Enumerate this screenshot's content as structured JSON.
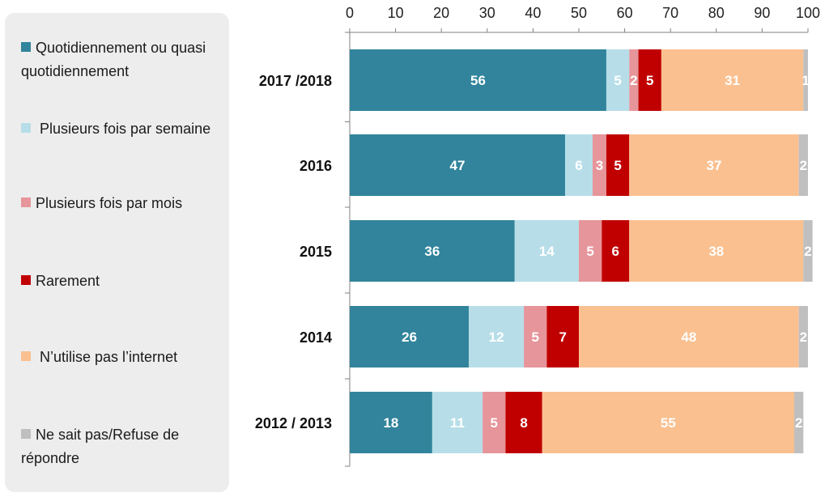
{
  "chart_data": {
    "type": "bar",
    "orientation": "horizontal",
    "stacked": true,
    "categories": [
      "2017 /2018",
      "2016",
      "2015",
      "2014",
      "2012 / 2013"
    ],
    "xlim": [
      0,
      100
    ],
    "xticks": [
      0,
      10,
      20,
      30,
      40,
      50,
      60,
      70,
      80,
      90,
      100
    ],
    "grid": false,
    "legend_position": "left",
    "series": [
      {
        "name": "Quotidiennement ou quasi quotidiennement",
        "color": "#31849b",
        "values": [
          56,
          47,
          36,
          26,
          18
        ]
      },
      {
        "name": " Plusieurs fois par semaine",
        "color": "#b7dee8",
        "values": [
          5,
          6,
          14,
          12,
          11
        ]
      },
      {
        "name": "Plusieurs fois par mois",
        "color": "#e6959a",
        "values": [
          2,
          3,
          5,
          5,
          5
        ]
      },
      {
        "name": "Rarement",
        "color": "#c00000",
        "values": [
          5,
          5,
          6,
          7,
          8
        ]
      },
      {
        "name": " N’utilise pas l’internet",
        "color": "#fac090",
        "values": [
          31,
          37,
          38,
          48,
          55
        ]
      },
      {
        "name": "Ne sait pas/Refuse de répondre",
        "color": "#bfbfbf",
        "values": [
          1,
          2,
          2,
          2,
          2
        ]
      }
    ]
  }
}
